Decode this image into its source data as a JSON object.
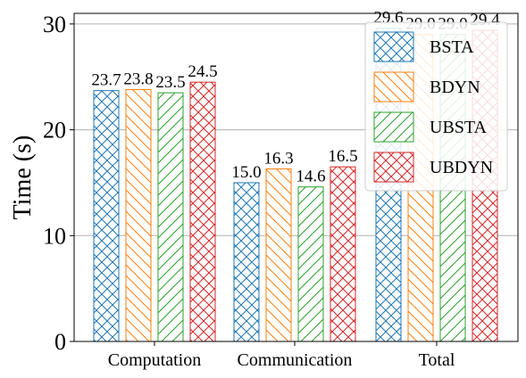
{
  "chart_data": {
    "type": "bar",
    "title": "",
    "xlabel": "",
    "ylabel": "Time (s)",
    "ylim": [
      0,
      31
    ],
    "yticks": [
      0,
      10,
      20,
      30
    ],
    "grid": "horizontal",
    "legend_position": "top-right",
    "categories": [
      "Computation",
      "Communication",
      "Total"
    ],
    "series": [
      {
        "name": "BSTA",
        "color": "#1f77b4",
        "hatch": "cross",
        "values": [
          23.7,
          15.0,
          29.6
        ],
        "labels": [
          "23.7",
          "15.0",
          "29.6"
        ]
      },
      {
        "name": "BDYN",
        "color": "#ff7f0e",
        "hatch": "backslash",
        "values": [
          23.8,
          16.3,
          29.0
        ],
        "labels": [
          "23.8",
          "16.3",
          "29.0"
        ]
      },
      {
        "name": "UBSTA",
        "color": "#2ca02c",
        "hatch": "slash",
        "values": [
          23.5,
          14.6,
          29.0
        ],
        "labels": [
          "23.5",
          "14.6",
          "29.0"
        ]
      },
      {
        "name": "UBDYN",
        "color": "#d62728",
        "hatch": "cross",
        "values": [
          24.5,
          16.5,
          29.4
        ],
        "labels": [
          "24.5",
          "16.5",
          "29.4"
        ]
      }
    ]
  }
}
